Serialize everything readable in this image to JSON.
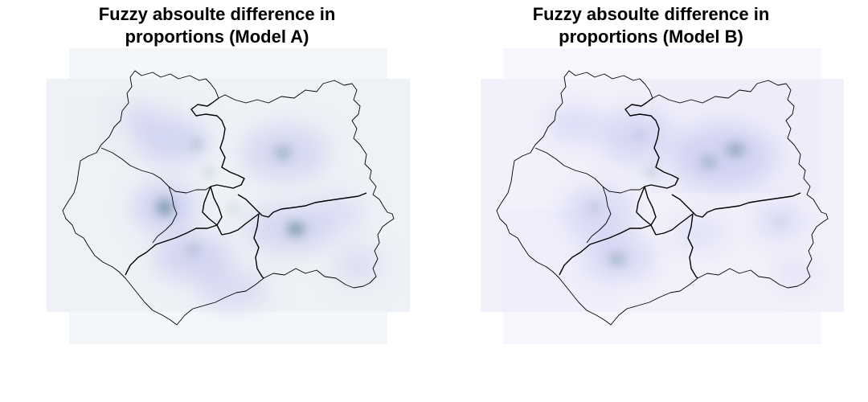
{
  "panels": [
    {
      "id": "model-a",
      "title_line1": "Fuzzy absoulte difference in",
      "title_line2": "proportions (Model A)",
      "hotspot_color": "#4f7f86",
      "halo_color": "#b9b9ee",
      "background_tint": "#edf1f5"
    },
    {
      "id": "model-b",
      "title_line1": "Fuzzy absoulte difference in",
      "title_line2": "proportions (Model B)",
      "hotspot_color": "#4f7f86",
      "halo_color": "#bcbcf0",
      "background_tint": "#eef0fa"
    }
  ],
  "colors": {
    "boundary": "#000000",
    "background": "#ffffff"
  }
}
